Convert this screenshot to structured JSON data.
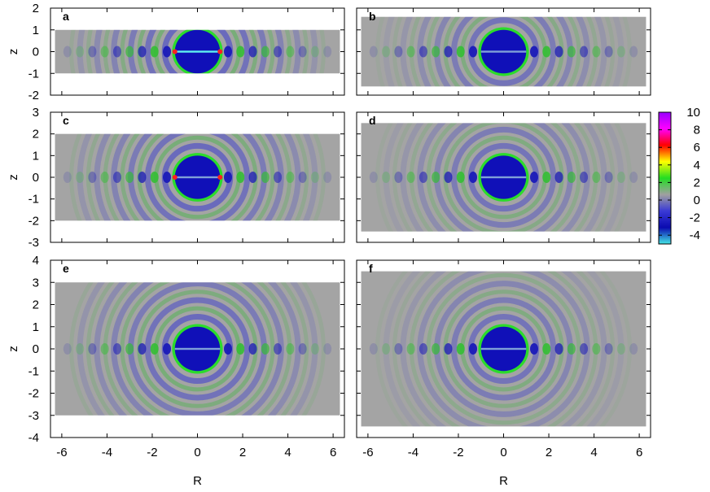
{
  "chart_data": {
    "type": "heatmap",
    "xlabel": "R",
    "ylabel": "z",
    "xlim": [
      -6.5,
      6.5
    ],
    "x_ticks": [
      "-6",
      "-4",
      "-2",
      "0",
      "2",
      "4",
      "6"
    ],
    "colorbar": {
      "range": [
        -5,
        10
      ],
      "tick_labels": [
        "10",
        "8",
        "6",
        "4",
        "2",
        "0",
        "-2",
        "-4"
      ],
      "colors": [
        "#44e6e6",
        "#0a0ab0",
        "#3a3ad6",
        "#a0a0a0",
        "#22dd22",
        "#ffff00",
        "#ff0000",
        "#ff00ff",
        "#9900ff"
      ]
    },
    "panels": [
      {
        "label": "a",
        "ylim": [
          -2,
          2
        ],
        "y_ticks": [
          "2",
          "1",
          "0",
          "-1",
          "-2"
        ],
        "z_extent": 1.0,
        "sphere_radius": 1.0,
        "show_ylabel": true,
        "show_xticks": false
      },
      {
        "label": "b",
        "ylim": [
          -2,
          2
        ],
        "z_extent": 1.6,
        "sphere_radius": 1.0,
        "show_ylabel": false,
        "show_xticks": false
      },
      {
        "label": "c",
        "ylim": [
          -3,
          3
        ],
        "y_ticks": [
          "3",
          "2",
          "1",
          "0",
          "-1",
          "-2",
          "-3"
        ],
        "z_extent": 2.0,
        "sphere_radius": 1.0,
        "show_ylabel": true,
        "show_xticks": false
      },
      {
        "label": "d",
        "ylim": [
          -3,
          3
        ],
        "z_extent": 2.5,
        "sphere_radius": 1.0,
        "show_ylabel": false,
        "show_xticks": false
      },
      {
        "label": "e",
        "ylim": [
          -4,
          4
        ],
        "y_ticks": [
          "4",
          "3",
          "2",
          "1",
          "0",
          "-1",
          "-2",
          "-3",
          "-4"
        ],
        "z_extent": 3.0,
        "sphere_radius": 1.0,
        "show_ylabel": true,
        "show_xticks": true
      },
      {
        "label": "f",
        "ylim": [
          -4,
          4
        ],
        "z_extent": 3.5,
        "sphere_radius": 1.0,
        "show_ylabel": false,
        "show_xticks": true
      }
    ]
  }
}
